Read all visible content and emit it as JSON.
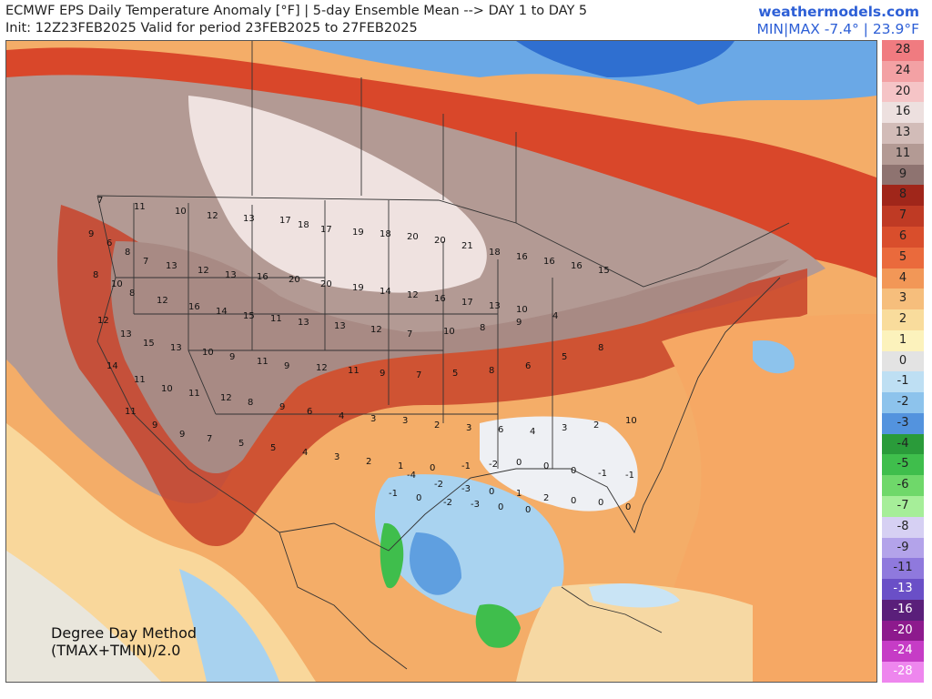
{
  "header": {
    "title": "ECMWF EPS Daily Temperature Anomaly [°F] | 5-day Ensemble Mean --> DAY 1 to DAY 5",
    "subtitle": "Init: 12Z23FEB2025 Valid for period 23FEB2025 to 27FEB2025",
    "brand": "weathermodels.com",
    "minmax": "MIN|MAX -7.4° | 23.9°F"
  },
  "method": {
    "line1": "Degree Day Method",
    "line2": "(TMAX+TMIN)/2.0"
  },
  "legend": [
    {
      "label": "28",
      "color": "#f07b80"
    },
    {
      "label": "24",
      "color": "#f3a1a4"
    },
    {
      "label": "20",
      "color": "#f5c4c6"
    },
    {
      "label": "16",
      "color": "#ede0df"
    },
    {
      "label": "13",
      "color": "#d2bcb8"
    },
    {
      "label": "11",
      "color": "#b39a94"
    },
    {
      "label": "9",
      "color": "#8e7370"
    },
    {
      "label": "8",
      "color": "#a0261a"
    },
    {
      "label": "7",
      "color": "#bf3a24"
    },
    {
      "label": "6",
      "color": "#d94e2c"
    },
    {
      "label": "5",
      "color": "#ea6a3c"
    },
    {
      "label": "4",
      "color": "#f29757"
    },
    {
      "label": "3",
      "color": "#f6be7c"
    },
    {
      "label": "2",
      "color": "#f9dc9c"
    },
    {
      "label": "1",
      "color": "#fcf2bc"
    },
    {
      "label": "0",
      "color": "#e3e3e3"
    },
    {
      "label": "-1",
      "color": "#bedff3"
    },
    {
      "label": "-2",
      "color": "#8dc3ec"
    },
    {
      "label": "-3",
      "color": "#5393de"
    },
    {
      "label": "-4",
      "color": "#2a9b3a"
    },
    {
      "label": "-5",
      "color": "#3fbe4c"
    },
    {
      "label": "-6",
      "color": "#6fd86a"
    },
    {
      "label": "-7",
      "color": "#a6ee99"
    },
    {
      "label": "-8",
      "color": "#d6d0f3"
    },
    {
      "label": "-9",
      "color": "#b3a3ea"
    },
    {
      "label": "-11",
      "color": "#8f79dd"
    },
    {
      "label": "-13",
      "color": "#6a4fc7"
    },
    {
      "label": "-16",
      "color": "#5a1f7a"
    },
    {
      "label": "-20",
      "color": "#8d1a8d"
    },
    {
      "label": "-24",
      "color": "#c63cc6"
    },
    {
      "label": "-28",
      "color": "#ee86ee"
    }
  ],
  "point_values": [
    "7",
    "11",
    "10",
    "12",
    "13",
    "17",
    "18",
    "17",
    "19",
    "18",
    "20",
    "20",
    "21",
    "18",
    "16",
    "16",
    "16",
    "15",
    "9",
    "6",
    "8",
    "7",
    "13",
    "12",
    "13",
    "16",
    "20",
    "20",
    "19",
    "14",
    "12",
    "16",
    "17",
    "13",
    "10",
    "8",
    "10",
    "8",
    "12",
    "16",
    "14",
    "15",
    "11",
    "13",
    "13",
    "12",
    "7",
    "10",
    "8",
    "9",
    "4",
    "12",
    "13",
    "15",
    "13",
    "10",
    "9",
    "11",
    "9",
    "12",
    "11",
    "9",
    "7",
    "5",
    "8",
    "6",
    "5",
    "8",
    "14",
    "11",
    "10",
    "11",
    "12",
    "8",
    "9",
    "6",
    "4",
    "3",
    "3",
    "2",
    "3",
    "6",
    "4",
    "3",
    "2",
    "10",
    "11",
    "9",
    "9",
    "7",
    "5",
    "5",
    "4",
    "3",
    "2",
    "1",
    "0",
    "-1",
    "-2",
    "0",
    "0",
    "0",
    "-1",
    "-1",
    "-4",
    "-2",
    "-3",
    "0",
    "1",
    "2",
    "0",
    "0",
    "0",
    "-1",
    "0",
    "-2",
    "-3",
    "0",
    "0"
  ],
  "colors": {
    "brand": "#2d5fd6",
    "ocean_warm": "#f6a35c",
    "interior_warm": "#c9aaa4",
    "gulf_cool": "#7fb6e8"
  }
}
